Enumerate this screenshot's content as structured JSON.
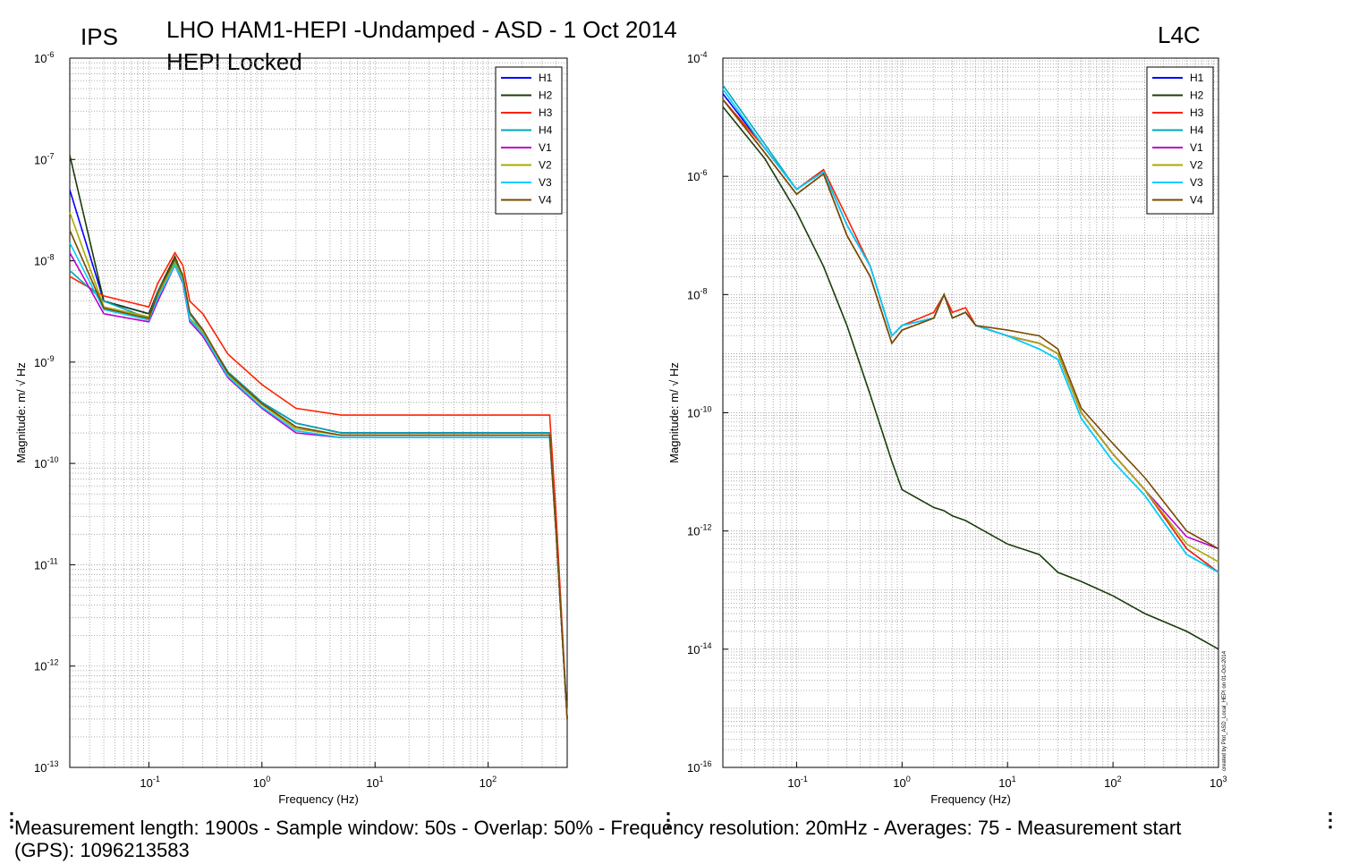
{
  "header": {
    "title": "LHO HAM1-HEPI -Undamped - ASD - 1 Oct 2014",
    "subtitle": "HEPI Locked",
    "left_label": "IPS",
    "right_label": "L4C"
  },
  "footer": {
    "line1": "Measurement length: 1900s - Sample window: 50s - Overlap: 50% - Frequency resolution: 20mHz - Averages: 75 - Measurement start",
    "line2": "(GPS): 1096213583"
  },
  "side_note": "created by Plot_ASD_Local_HEPI on 01-Oct-2014",
  "chart_data": [
    {
      "type": "line",
      "name": "IPS",
      "xlabel": "Frequency (Hz)",
      "ylabel": "Magnitude: m/ √ Hz",
      "xscale": "log",
      "yscale": "log",
      "xlim": [
        0.02,
        500
      ],
      "ylim": [
        1e-13,
        1e-06
      ],
      "grid": true,
      "legend": "top-right",
      "x_ticks": [
        "10^-1",
        "10^0",
        "10^1",
        "10^2"
      ],
      "y_ticks": [
        "10^-13",
        "10^-12",
        "10^-11",
        "10^-10",
        "10^-9",
        "10^-8",
        "10^-7",
        "10^-6"
      ],
      "x": [
        0.02,
        0.04,
        0.1,
        0.12,
        0.17,
        0.2,
        0.23,
        0.3,
        0.5,
        1,
        2,
        5,
        10,
        20,
        50,
        100,
        200,
        350,
        400,
        500
      ],
      "series": [
        {
          "name": "H1",
          "color": "#0000ff",
          "values": [
            5e-08,
            4e-09,
            3e-09,
            5e-09,
            1e-08,
            7e-09,
            3e-09,
            2e-09,
            8e-10,
            4e-10,
            2.5e-10,
            2e-10,
            2e-10,
            2e-10,
            2e-10,
            2e-10,
            2e-10,
            2e-10,
            2e-11,
            3e-13
          ]
        },
        {
          "name": "H2",
          "color": "#1a3d0c",
          "values": [
            1.1e-07,
            4e-09,
            3e-09,
            5e-09,
            1.1e-08,
            7e-09,
            3e-09,
            2e-09,
            8e-10,
            4e-10,
            2.5e-10,
            2e-10,
            2e-10,
            2e-10,
            2e-10,
            2e-10,
            2e-10,
            2e-10,
            2e-11,
            3e-13
          ]
        },
        {
          "name": "H3",
          "color": "#ff2200",
          "values": [
            7e-09,
            4.5e-09,
            3.5e-09,
            6e-09,
            1.2e-08,
            9e-09,
            4e-09,
            3e-09,
            1.2e-09,
            6e-10,
            3.5e-10,
            3e-10,
            3e-10,
            3e-10,
            3e-10,
            3e-10,
            3e-10,
            3e-10,
            3e-11,
            3e-13
          ]
        },
        {
          "name": "H4",
          "color": "#00aabb",
          "values": [
            8e-09,
            4e-09,
            2.7e-09,
            5e-09,
            1e-08,
            7e-09,
            3e-09,
            2e-09,
            8e-10,
            4e-10,
            2.5e-10,
            2e-10,
            2e-10,
            2e-10,
            2e-10,
            2e-10,
            2e-10,
            2e-10,
            2e-11,
            3e-13
          ]
        },
        {
          "name": "V1",
          "color": "#bb00cc",
          "values": [
            1.2e-08,
            3e-09,
            2.5e-09,
            4e-09,
            9e-09,
            6e-09,
            2.5e-09,
            1.8e-09,
            7e-10,
            3.5e-10,
            2e-10,
            1.8e-10,
            1.8e-10,
            1.8e-10,
            1.8e-10,
            1.8e-10,
            1.8e-10,
            1.8e-10,
            2e-11,
            3e-13
          ]
        },
        {
          "name": "V2",
          "color": "#aaaa00",
          "values": [
            3e-08,
            3.5e-09,
            2.8e-09,
            4.5e-09,
            9.5e-09,
            6.5e-09,
            2.7e-09,
            2e-09,
            7.5e-10,
            3.8e-10,
            2.2e-10,
            1.9e-10,
            1.9e-10,
            1.9e-10,
            1.9e-10,
            1.9e-10,
            1.9e-10,
            1.9e-10,
            2e-11,
            3e-13
          ]
        },
        {
          "name": "V3",
          "color": "#00ccff",
          "values": [
            1.5e-08,
            3.3e-09,
            2.6e-09,
            4.3e-09,
            9e-09,
            6.2e-09,
            2.6e-09,
            1.9e-09,
            7.2e-10,
            3.6e-10,
            2.1e-10,
            1.8e-10,
            1.8e-10,
            1.8e-10,
            1.8e-10,
            1.8e-10,
            1.8e-10,
            1.8e-10,
            2e-11,
            3e-13
          ]
        },
        {
          "name": "V4",
          "color": "#7a4a00",
          "values": [
            2e-08,
            3.4e-09,
            2.7e-09,
            4.8e-09,
            1.05e-08,
            7.2e-09,
            3.1e-09,
            2.1e-09,
            7.8e-10,
            3.9e-10,
            2.3e-10,
            1.9e-10,
            1.9e-10,
            1.9e-10,
            1.9e-10,
            1.9e-10,
            1.9e-10,
            1.9e-10,
            2e-11,
            3e-13
          ]
        }
      ]
    },
    {
      "type": "line",
      "name": "L4C",
      "xlabel": "Frequency (Hz)",
      "ylabel": "Magnitude: m/ √ Hz",
      "xscale": "log",
      "yscale": "log",
      "xlim": [
        0.02,
        1000
      ],
      "ylim": [
        1e-16,
        0.0001
      ],
      "grid": true,
      "legend": "top-right",
      "x_ticks": [
        "10^-1",
        "10^0",
        "10^1",
        "10^2",
        "10^3"
      ],
      "y_ticks": [
        "10^-16",
        "10^-14",
        "10^-12",
        "10^-10",
        "10^-8",
        "10^-6",
        "10^-4"
      ],
      "x": [
        0.02,
        0.05,
        0.1,
        0.18,
        0.3,
        0.5,
        0.8,
        1,
        2,
        2.5,
        3,
        4,
        5,
        10,
        20,
        30,
        50,
        100,
        200,
        500,
        1000
      ],
      "series": [
        {
          "name": "H1",
          "color": "#0000ff",
          "values": [
            2.5e-05,
            3e-06,
            6e-07,
            1.2e-06,
            1.5e-07,
            3e-08,
            2e-09,
            3e-09,
            4e-09,
            1e-08,
            4e-09,
            5e-09,
            3e-09,
            2e-09,
            1.5e-09,
            1e-09,
            1e-10,
            2e-11,
            5e-12,
            5e-13,
            2e-13
          ]
        },
        {
          "name": "H2",
          "color": "#1a3d0c",
          "values": [
            1.5e-05,
            2e-06,
            2.5e-07,
            3e-08,
            3e-09,
            2e-10,
            1.5e-11,
            5e-12,
            2.5e-12,
            2.2e-12,
            1.8e-12,
            1.5e-12,
            1.2e-12,
            6e-13,
            4e-13,
            2e-13,
            1.4e-13,
            8e-14,
            4e-14,
            2e-14,
            1e-14
          ]
        },
        {
          "name": "H3",
          "color": "#ff2200",
          "values": [
            2e-05,
            3e-06,
            6e-07,
            1.3e-06,
            2e-07,
            3e-08,
            2e-09,
            3e-09,
            5e-09,
            1e-08,
            5e-09,
            6e-09,
            3e-09,
            2e-09,
            1.5e-09,
            1e-09,
            1e-10,
            2e-11,
            5e-12,
            5e-13,
            2e-13
          ]
        },
        {
          "name": "H4",
          "color": "#00aabb",
          "values": [
            3.5e-05,
            3.5e-06,
            6e-07,
            1.2e-06,
            1.5e-07,
            3e-08,
            2e-09,
            3e-09,
            4e-09,
            1e-08,
            4e-09,
            5e-09,
            3e-09,
            2e-09,
            1.2e-09,
            8e-10,
            8e-11,
            1.5e-11,
            4e-12,
            4e-13,
            2e-13
          ]
        },
        {
          "name": "V1",
          "color": "#bb00cc",
          "values": [
            2e-05,
            2.5e-06,
            5e-07,
            1.1e-06,
            1e-07,
            2e-08,
            1.5e-09,
            2.5e-09,
            4e-09,
            1e-08,
            4e-09,
            5e-09,
            3e-09,
            2e-09,
            1.5e-09,
            1e-09,
            1e-10,
            2e-11,
            5e-12,
            8e-13,
            5e-13
          ]
        },
        {
          "name": "V2",
          "color": "#aaaa00",
          "values": [
            2e-05,
            2.5e-06,
            5e-07,
            1.1e-06,
            1e-07,
            2e-08,
            1.5e-09,
            2.5e-09,
            4e-09,
            1e-08,
            4e-09,
            5e-09,
            3e-09,
            2e-09,
            1.5e-09,
            1e-09,
            1e-10,
            2e-11,
            5e-12,
            6e-13,
            3e-13
          ]
        },
        {
          "name": "V3",
          "color": "#00ccff",
          "values": [
            3e-05,
            3e-06,
            6e-07,
            1.2e-06,
            1.5e-07,
            3e-08,
            2e-09,
            3e-09,
            4e-09,
            1e-08,
            4e-09,
            5e-09,
            3e-09,
            2e-09,
            1.2e-09,
            8e-10,
            8e-11,
            1.5e-11,
            4e-12,
            4e-13,
            2e-13
          ]
        },
        {
          "name": "V4",
          "color": "#7a4a00",
          "values": [
            2e-05,
            2.5e-06,
            5e-07,
            1.1e-06,
            1e-07,
            2e-08,
            1.5e-09,
            2.5e-09,
            4e-09,
            1e-08,
            4e-09,
            5e-09,
            3e-09,
            2.5e-09,
            2e-09,
            1.2e-09,
            1.2e-10,
            3e-11,
            8e-12,
            1e-12,
            5e-13
          ]
        }
      ]
    }
  ]
}
